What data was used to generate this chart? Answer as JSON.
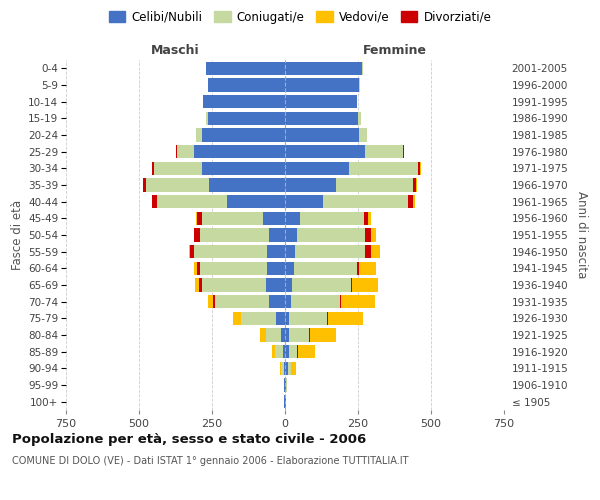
{
  "age_groups": [
    "100+",
    "95-99",
    "90-94",
    "85-89",
    "80-84",
    "75-79",
    "70-74",
    "65-69",
    "60-64",
    "55-59",
    "50-54",
    "45-49",
    "40-44",
    "35-39",
    "30-34",
    "25-29",
    "20-24",
    "15-19",
    "10-14",
    "5-9",
    "0-4"
  ],
  "birth_years": [
    "≤ 1905",
    "1906-1910",
    "1911-1915",
    "1916-1920",
    "1921-1925",
    "1926-1930",
    "1931-1935",
    "1936-1940",
    "1941-1945",
    "1946-1950",
    "1951-1955",
    "1956-1960",
    "1961-1965",
    "1966-1970",
    "1971-1975",
    "1976-1980",
    "1981-1985",
    "1986-1990",
    "1991-1995",
    "1996-2000",
    "2001-2005"
  ],
  "male": {
    "celibi": [
      2,
      3,
      5,
      8,
      15,
      30,
      55,
      65,
      60,
      60,
      55,
      75,
      200,
      260,
      285,
      310,
      285,
      265,
      280,
      265,
      270
    ],
    "coniugati": [
      1,
      2,
      8,
      25,
      50,
      120,
      185,
      220,
      230,
      250,
      235,
      210,
      240,
      215,
      165,
      60,
      20,
      5,
      1,
      0,
      0
    ],
    "vedovi": [
      0,
      0,
      3,
      10,
      20,
      25,
      20,
      15,
      10,
      5,
      3,
      2,
      2,
      1,
      1,
      0,
      0,
      0,
      0,
      0,
      0
    ],
    "divorziati": [
      0,
      0,
      0,
      1,
      1,
      2,
      5,
      8,
      10,
      15,
      20,
      18,
      15,
      10,
      5,
      2,
      0,
      0,
      0,
      0,
      0
    ]
  },
  "female": {
    "nubili": [
      2,
      4,
      10,
      12,
      12,
      15,
      20,
      25,
      30,
      35,
      40,
      50,
      130,
      175,
      220,
      275,
      255,
      250,
      245,
      255,
      265
    ],
    "coniugate": [
      1,
      2,
      12,
      30,
      70,
      130,
      170,
      200,
      215,
      240,
      235,
      220,
      290,
      265,
      235,
      130,
      25,
      10,
      3,
      2,
      1
    ],
    "vedove": [
      0,
      2,
      15,
      60,
      90,
      120,
      115,
      90,
      55,
      30,
      15,
      8,
      5,
      3,
      2,
      1,
      0,
      0,
      0,
      0,
      0
    ],
    "divorziate": [
      0,
      0,
      0,
      1,
      2,
      2,
      3,
      5,
      10,
      20,
      20,
      15,
      20,
      10,
      8,
      3,
      1,
      0,
      0,
      0,
      0
    ]
  },
  "colors": {
    "celibi": "#4472c4",
    "coniugati": "#c5d9a0",
    "vedovi": "#ffc000",
    "divorziati": "#cc0000"
  },
  "xlim": 750,
  "title": "Popolazione per età, sesso e stato civile - 2006",
  "subtitle": "COMUNE DI DOLO (VE) - Dati ISTAT 1° gennaio 2006 - Elaborazione TUTTITALIA.IT",
  "xlabel_left": "Maschi",
  "xlabel_right": "Femmine",
  "ylabel_left": "Fasce di età",
  "ylabel_right": "Anni di nascita",
  "legend_labels": [
    "Celibi/Nubili",
    "Coniugati/e",
    "Vedovi/e",
    "Divorziati/e"
  ],
  "background_color": "#ffffff",
  "grid_color": "#cccccc",
  "bar_height": 0.8,
  "xticks": [
    -750,
    -500,
    -250,
    0,
    250,
    500,
    750
  ]
}
